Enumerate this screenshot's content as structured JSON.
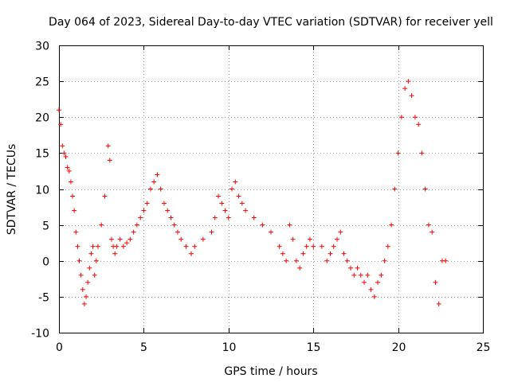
{
  "chart_data": {
    "type": "scatter",
    "title": "Day 064 of 2023, Sidereal Day-to-day VTEC variation (SDTVAR) for receiver yell",
    "xlabel": "GPS time / hours",
    "ylabel": "SDTVAR / TECUs",
    "xlim": [
      0,
      25
    ],
    "ylim": [
      -10,
      30
    ],
    "xticks": [
      "0",
      "5",
      "10",
      "15",
      "20",
      "25"
    ],
    "yticks": [
      "-10",
      "-5",
      "0",
      "5",
      "10",
      "15",
      "20",
      "25",
      "30"
    ],
    "grid": true,
    "marker": "+",
    "color": "#ff0000",
    "series": [
      {
        "name": "SDTVAR",
        "x": [
          0.0,
          0.1,
          0.2,
          0.3,
          0.4,
          0.5,
          0.6,
          0.7,
          0.8,
          0.9,
          1.0,
          1.1,
          1.2,
          1.3,
          1.4,
          1.5,
          1.6,
          1.7,
          1.8,
          1.9,
          2.0,
          2.1,
          2.2,
          2.3,
          2.5,
          2.7,
          2.9,
          3.0,
          3.1,
          3.2,
          3.3,
          3.4,
          3.6,
          3.8,
          4.0,
          4.2,
          4.4,
          4.6,
          4.8,
          5.0,
          5.2,
          5.4,
          5.6,
          5.8,
          6.0,
          6.2,
          6.4,
          6.6,
          6.8,
          7.0,
          7.2,
          7.5,
          7.8,
          8.0,
          8.5,
          9.0,
          9.2,
          9.4,
          9.6,
          9.8,
          10.0,
          10.2,
          10.4,
          10.6,
          10.8,
          11.0,
          11.5,
          12.0,
          12.5,
          13.0,
          13.2,
          13.4,
          13.6,
          13.8,
          14.0,
          14.2,
          14.4,
          14.6,
          14.8,
          15.0,
          15.5,
          15.8,
          16.0,
          16.2,
          16.4,
          16.6,
          16.8,
          17.0,
          17.2,
          17.4,
          17.6,
          17.8,
          18.0,
          18.2,
          18.4,
          18.6,
          18.8,
          19.0,
          19.2,
          19.4,
          19.6,
          19.8,
          20.0,
          20.2,
          20.4,
          20.6,
          20.8,
          21.0,
          21.2,
          21.4,
          21.6,
          21.8,
          22.0,
          22.2,
          22.4,
          22.6,
          22.8
        ],
        "y": [
          21,
          19,
          16,
          15,
          14.5,
          13,
          12.5,
          11,
          9,
          7,
          4,
          2,
          0,
          -2,
          -4,
          -6,
          -5,
          -3,
          -1,
          1,
          2,
          -2,
          0,
          2,
          5,
          9,
          16,
          14,
          3,
          2,
          1,
          2,
          3,
          2,
          2.5,
          3,
          4,
          5,
          6,
          7,
          8,
          10,
          11,
          12,
          10,
          8,
          7,
          6,
          5,
          4,
          3,
          2,
          1,
          2,
          3,
          4,
          6,
          9,
          8,
          7,
          6,
          10,
          11,
          9,
          8,
          7,
          6,
          5,
          4,
          2,
          1,
          0,
          5,
          3,
          0,
          -1,
          1,
          2,
          3,
          2,
          2,
          0,
          1,
          2,
          3,
          4,
          1,
          0,
          -1,
          -2,
          -1,
          -2,
          -3,
          -2,
          -4,
          -5,
          -3,
          -2,
          0,
          2,
          5,
          10,
          15,
          20,
          24,
          25,
          23,
          20,
          19,
          15,
          10,
          5,
          4,
          -3,
          -6,
          0,
          0
        ]
      }
    ]
  }
}
